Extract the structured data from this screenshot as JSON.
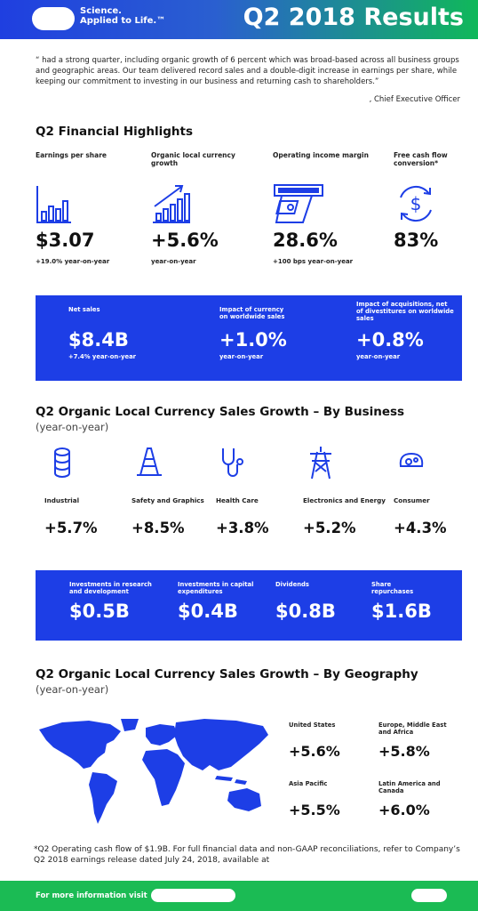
{
  "header": {
    "tagline": "Science.\nApplied to Life.™",
    "title": "Q2 2018 Results",
    "colors": {
      "blue": "#1d3ee6",
      "green": "#1bbb54"
    }
  },
  "quote": {
    "text": "“      had a strong quarter, including organic growth of 6 percent which was broad-based across all business groups and geographic areas.  Our team delivered record sales and a double-digit increase in earnings per share, while keeping our commitment to investing in our business and returning cash to shareholders.”",
    "attribution": ", Chief Executive Officer"
  },
  "highlights": {
    "title": "Q2 Financial Highlights",
    "items": [
      {
        "label": "Earnings per share",
        "icon": "bar-chart-icon",
        "value": "$3.07",
        "note": "+19.0% year-on-year"
      },
      {
        "label": "Organic local currency growth",
        "icon": "growth-chart-icon",
        "value": "+5.6%",
        "note": "year-on-year"
      },
      {
        "label": "Operating income margin",
        "icon": "cash-register-icon",
        "value": "28.6%",
        "note": "+100 bps year-on-year"
      },
      {
        "label": "Free cash flow conversion*",
        "icon": "dollar-cycle-icon",
        "value": "83%",
        "note": ""
      }
    ]
  },
  "sales_box": {
    "items": [
      {
        "label": "Net sales",
        "value": "$8.4B",
        "note": "+7.4% year-on-year"
      },
      {
        "label": "Impact of currency on worldwide sales",
        "value": "+1.0%",
        "note": "year-on-year"
      },
      {
        "label": "Impact of acquisitions, net of divestitures on worldwide sales",
        "value": "+0.8%",
        "note": "year-on-year"
      }
    ]
  },
  "business": {
    "title": "Q2 Organic Local Currency Sales Growth – By Business",
    "subtitle": "(year-on-year)",
    "items": [
      {
        "label": "Industrial",
        "icon": "tape-roll-icon",
        "value": "+5.7%"
      },
      {
        "label": "Safety and Graphics",
        "icon": "traffic-cone-icon",
        "value": "+8.5%"
      },
      {
        "label": "Health Care",
        "icon": "stethoscope-icon",
        "value": "+3.8%"
      },
      {
        "label": "Electronics and Energy",
        "icon": "power-tower-icon",
        "value": "+5.2%"
      },
      {
        "label": "Consumer",
        "icon": "sponge-icon",
        "value": "+4.3%"
      }
    ]
  },
  "investments": {
    "items": [
      {
        "label": "Investments in research and development",
        "value": "$0.5B"
      },
      {
        "label": "Investments in capital expenditures",
        "value": "$0.4B"
      },
      {
        "label": "Dividends",
        "value": "$0.8B"
      },
      {
        "label": "Share repurchases",
        "value": "$1.6B"
      }
    ]
  },
  "geography": {
    "title": "Q2 Organic Local Currency Sales Growth – By Geography",
    "subtitle": "(year-on-year)",
    "map_icon": "world-map-icon",
    "items": [
      {
        "label": "United States",
        "value": "+5.6%"
      },
      {
        "label": "Europe, Middle East and Africa",
        "value": "+5.8%"
      },
      {
        "label": "Asia Pacific",
        "value": "+5.5%"
      },
      {
        "label": "Latin America and Canada",
        "value": "+6.0%"
      }
    ]
  },
  "footnote": "*Q2 Operating cash flow of $1.9B. For full financial data and non-GAAP reconciliations, refer to Company’s Q2 2018 earnings release dated July 24, 2018, available at",
  "footer": {
    "text": "For more information visit"
  }
}
